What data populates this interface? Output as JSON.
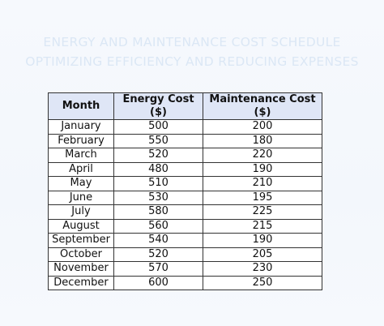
{
  "header": {
    "title_line1": "ENERGY AND MAINTENANCE COST SCHEDULE",
    "title_line2": "OPTIMIZING EFFICIENCY AND REDUCING EXPENSES"
  },
  "table": {
    "columns": [
      "Month",
      "Energy Cost ($)",
      "Maintenance Cost ($)"
    ],
    "rows": [
      [
        "January",
        "500",
        "200"
      ],
      [
        "February",
        "550",
        "180"
      ],
      [
        "March",
        "520",
        "220"
      ],
      [
        "April",
        "480",
        "190"
      ],
      [
        "May",
        "510",
        "210"
      ],
      [
        "June",
        "530",
        "195"
      ],
      [
        "July",
        "580",
        "225"
      ],
      [
        "August",
        "560",
        "215"
      ],
      [
        "September",
        "540",
        "190"
      ],
      [
        "October",
        "520",
        "205"
      ],
      [
        "November",
        "570",
        "230"
      ],
      [
        "December",
        "600",
        "250"
      ]
    ]
  },
  "colors": {
    "header_fill": "#dfe6f6",
    "title_text": "#dbe7f5",
    "border": "#333333"
  }
}
